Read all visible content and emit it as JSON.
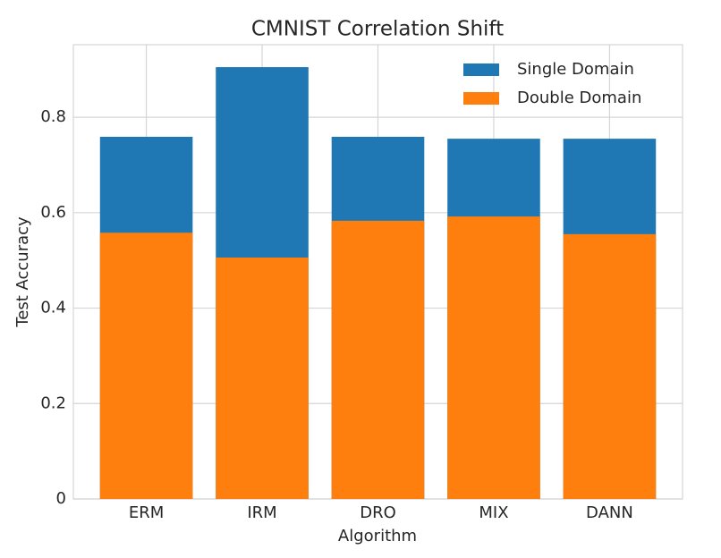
{
  "chart_data": {
    "type": "bar",
    "title": "CMNIST Correlation Shift",
    "xlabel": "Algorithm",
    "ylabel": "Test Accuracy",
    "categories": [
      "ERM",
      "IRM",
      "DRO",
      "MIX",
      "DANN"
    ],
    "series": [
      {
        "name": "Single Domain",
        "color": "#1f77b4",
        "values": [
          0.759,
          0.905,
          0.759,
          0.755,
          0.755
        ]
      },
      {
        "name": "Double Domain",
        "color": "#ff7f0e",
        "values": [
          0.558,
          0.506,
          0.583,
          0.592,
          0.555
        ]
      }
    ],
    "ylim": [
      0,
      0.952
    ],
    "yticks": [
      0.0,
      0.2,
      0.4,
      0.6,
      0.8
    ],
    "grid": true,
    "legend": "upper right"
  }
}
